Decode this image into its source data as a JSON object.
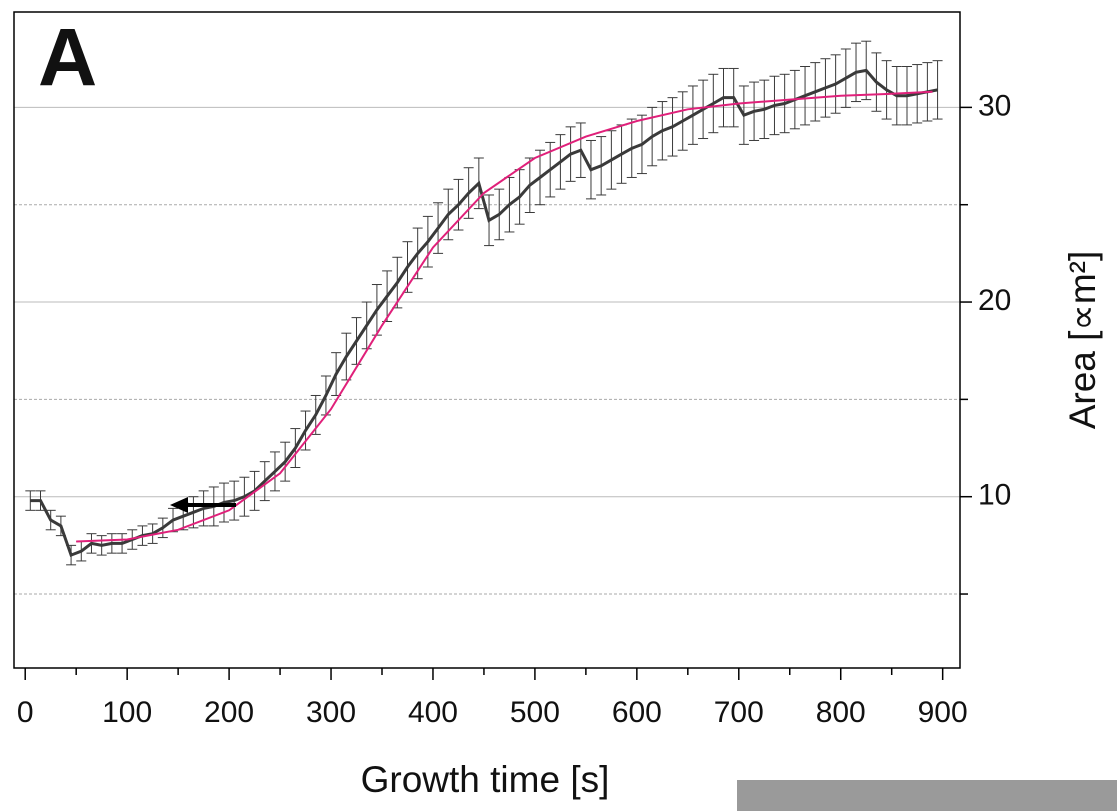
{
  "chart_data": {
    "type": "line",
    "panel_label": "A",
    "xlabel": "Growth time [s]",
    "ylabel": "Area [∝m²]",
    "xlim": [
      -11,
      917
    ],
    "ylim": [
      1.2,
      34.9
    ],
    "xticks": [
      0,
      100,
      200,
      300,
      400,
      500,
      600,
      700,
      800,
      900
    ],
    "xminorticks": [
      50,
      150,
      250,
      350,
      450,
      550,
      650,
      750,
      850
    ],
    "yticks": [
      10,
      20,
      30
    ],
    "yminorticks": [
      5,
      15,
      25
    ],
    "grid": true,
    "series": [
      {
        "color": "#3a3a3a",
        "x": [
          5,
          15,
          25,
          35,
          45,
          55,
          65,
          75,
          85,
          95,
          105,
          115,
          125,
          135,
          145,
          155,
          165,
          175,
          185,
          195,
          205,
          215,
          225,
          235,
          245,
          255,
          265,
          275,
          285,
          295,
          305,
          315,
          325,
          335,
          345,
          355,
          365,
          375,
          385,
          395,
          405,
          415,
          425,
          435,
          445,
          455,
          465,
          475,
          485,
          495,
          505,
          515,
          525,
          535,
          545,
          555,
          565,
          575,
          585,
          595,
          605,
          615,
          625,
          635,
          645,
          655,
          665,
          675,
          685,
          695,
          705,
          715,
          725,
          735,
          745,
          755,
          765,
          775,
          785,
          795,
          805,
          815,
          825,
          835,
          845,
          855,
          865,
          875,
          885,
          895
        ],
        "values": [
          9.8,
          9.8,
          8.8,
          8.5,
          7.0,
          7.2,
          7.6,
          7.5,
          7.6,
          7.6,
          7.8,
          8.0,
          8.1,
          8.4,
          8.8,
          9.0,
          9.2,
          9.4,
          9.5,
          9.7,
          9.8,
          10.0,
          10.3,
          10.8,
          11.3,
          11.8,
          12.5,
          13.4,
          14.2,
          15.2,
          16.3,
          17.2,
          18.0,
          18.8,
          19.6,
          20.3,
          21.0,
          21.8,
          22.5,
          23.1,
          23.8,
          24.5,
          25.0,
          25.6,
          26.1,
          24.2,
          24.5,
          25.0,
          25.4,
          26.0,
          26.4,
          26.8,
          27.2,
          27.6,
          27.8,
          26.8,
          27.0,
          27.3,
          27.6,
          27.9,
          28.1,
          28.5,
          28.8,
          29.0,
          29.3,
          29.6,
          29.9,
          30.2,
          30.5,
          30.5,
          29.6,
          29.8,
          29.9,
          30.1,
          30.2,
          30.4,
          30.6,
          30.8,
          31.0,
          31.2,
          31.5,
          31.8,
          31.9,
          31.3,
          30.9,
          30.6,
          30.6,
          30.7,
          30.8,
          30.9
        ],
        "errors": [
          0.5,
          0.5,
          0.5,
          0.5,
          0.5,
          0.5,
          0.5,
          0.5,
          0.5,
          0.5,
          0.5,
          0.5,
          0.5,
          0.5,
          0.6,
          0.7,
          0.8,
          0.9,
          1.0,
          1.0,
          1.0,
          1.0,
          1.0,
          1.0,
          1.0,
          1.0,
          1.0,
          1.0,
          1.0,
          1.0,
          1.1,
          1.2,
          1.2,
          1.2,
          1.3,
          1.3,
          1.3,
          1.3,
          1.3,
          1.3,
          1.3,
          1.3,
          1.3,
          1.3,
          1.3,
          1.3,
          1.3,
          1.4,
          1.4,
          1.4,
          1.4,
          1.4,
          1.4,
          1.4,
          1.4,
          1.5,
          1.5,
          1.5,
          1.5,
          1.5,
          1.5,
          1.5,
          1.5,
          1.5,
          1.5,
          1.5,
          1.5,
          1.5,
          1.5,
          1.5,
          1.5,
          1.5,
          1.5,
          1.5,
          1.5,
          1.5,
          1.5,
          1.5,
          1.5,
          1.5,
          1.5,
          1.5,
          1.5,
          1.5,
          1.5,
          1.5,
          1.5,
          1.5,
          1.5,
          1.5
        ]
      },
      {
        "color": "#e0207a",
        "x": [
          50,
          100,
          150,
          200,
          250,
          300,
          350,
          400,
          450,
          500,
          550,
          600,
          650,
          700,
          750,
          800,
          850,
          890
        ],
        "values": [
          7.7,
          7.8,
          8.3,
          9.3,
          11.2,
          14.5,
          18.8,
          22.8,
          25.6,
          27.4,
          28.5,
          29.3,
          29.9,
          30.2,
          30.4,
          30.6,
          30.7,
          30.8
        ]
      }
    ]
  }
}
